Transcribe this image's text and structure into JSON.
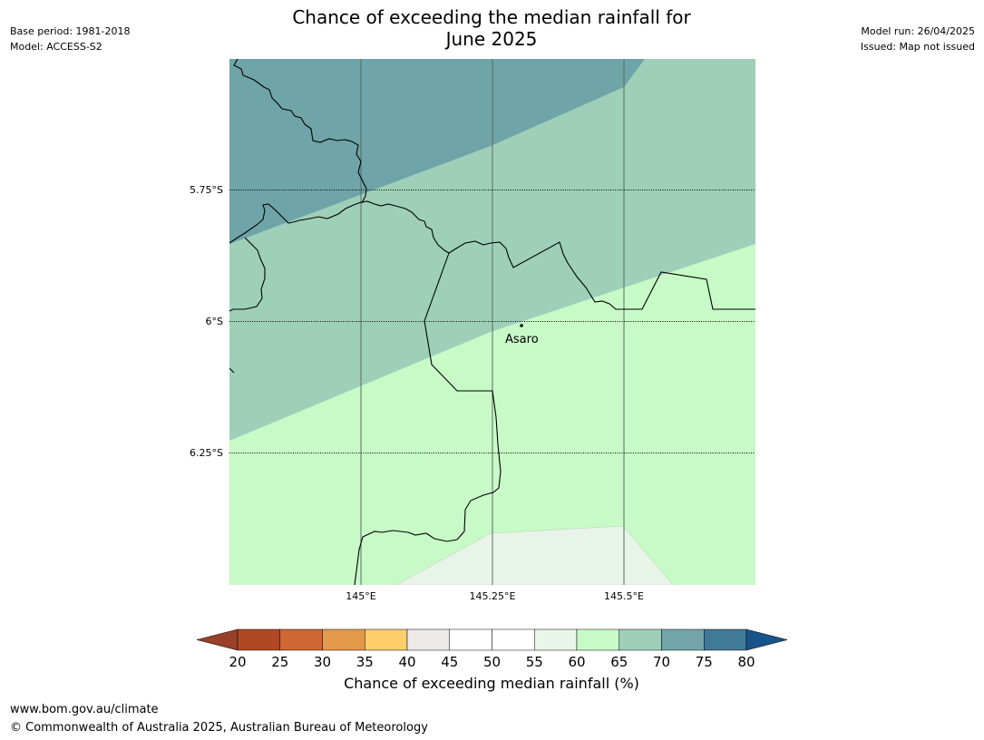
{
  "title_line1": "Chance of exceeding the median rainfall for",
  "title_line2": "June 2025",
  "meta_left": {
    "base_period": "Base period: 1981-2018",
    "model": "Model: ACCESS-S2"
  },
  "meta_right": {
    "model_run": "Model run: 26/04/2025",
    "issued": "Issued: Map not issued"
  },
  "map": {
    "lat_labels": [
      "5.75°S",
      "6°S",
      "6.25°S"
    ],
    "lon_labels": [
      "145°E",
      "145.25°E",
      "145.5°E"
    ],
    "place_label": "Asaro",
    "colors": {
      "band_75_80": "#6fa4a8",
      "band_65_70": "#9ed0b9",
      "band_60_65": "#c8fac8",
      "band_55_60": "#e8f4e8"
    }
  },
  "colorbar": {
    "title": "Chance of exceeding median rainfall (%)",
    "ticks": [
      "20",
      "25",
      "30",
      "35",
      "40",
      "45",
      "50",
      "55",
      "60",
      "65",
      "70",
      "75",
      "80"
    ],
    "colors": [
      "#b04825",
      "#cf6633",
      "#e3984a",
      "#fece6a",
      "#ece9e6",
      "#ffffff",
      "#ffffff",
      "#e9f5e9",
      "#c8fac8",
      "#9ed0b9",
      "#72a5a9",
      "#417998"
    ],
    "under_color": "#97402a",
    "over_color": "#17548a"
  },
  "footer": {
    "url": "www.bom.gov.au/climate",
    "copyright": "© Commonwealth of Australia 2025, Australian Bureau of Meteorology"
  }
}
